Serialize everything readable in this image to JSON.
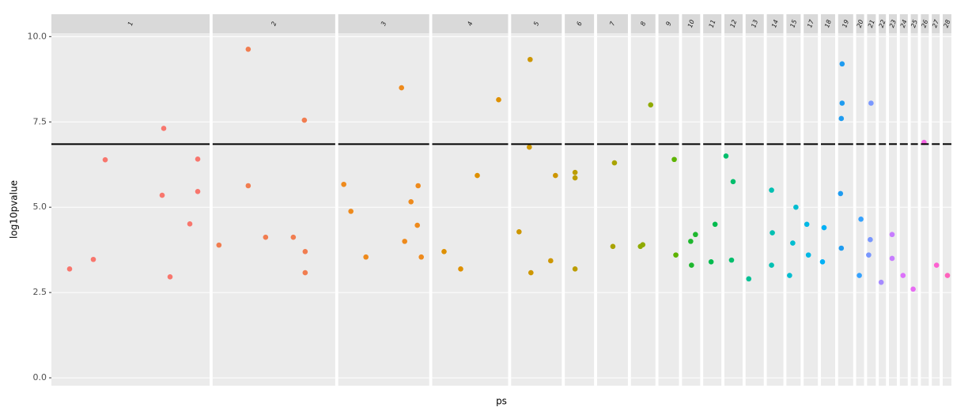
{
  "chart_data": {
    "type": "scatter",
    "y_label": "log10pvalue",
    "x_label": "ps",
    "ylim": [
      -0.23,
      10.1
    ],
    "yticks": [
      {
        "value": 0,
        "label": "0.0"
      },
      {
        "value": 2.5,
        "label": "2.5"
      },
      {
        "value": 5,
        "label": "5.0"
      },
      {
        "value": 7.5,
        "label": "7.5"
      },
      {
        "value": 10,
        "label": "10.0"
      }
    ],
    "threshold": 6.85,
    "grid": true,
    "series": [
      {
        "name": "1",
        "color": "#F8766D",
        "xlim": [
          0,
          200
        ],
        "x": [
          68,
          142,
          140,
          185,
          185,
          175,
          53,
          23,
          150
        ],
        "values": [
          6.39,
          7.31,
          5.35,
          6.41,
          5.46,
          4.51,
          3.47,
          3.19,
          2.96
        ]
      },
      {
        "name": "2",
        "color": "#F17D50",
        "xlim": [
          0,
          155
        ],
        "x": [
          45,
          116,
          45,
          67,
          102,
          117,
          117,
          8
        ],
        "values": [
          9.63,
          7.55,
          5.63,
          4.12,
          4.12,
          3.7,
          3.08,
          3.89
        ]
      },
      {
        "name": "3",
        "color": "#EE8A1C",
        "xlim": [
          0,
          115
        ],
        "x": [
          80,
          7,
          16,
          101,
          92,
          100,
          84,
          105,
          35
        ],
        "values": [
          8.5,
          5.67,
          4.88,
          5.63,
          5.16,
          4.47,
          4.0,
          3.54,
          3.54
        ]
      },
      {
        "name": "4",
        "color": "#DE9000",
        "xlim": [
          0,
          96
        ],
        "x": [
          84,
          57,
          15,
          36
        ],
        "values": [
          8.15,
          5.93,
          3.7,
          3.19
        ]
      },
      {
        "name": "5",
        "color": "#CD9600",
        "xlim": [
          0,
          64
        ],
        "x": [
          24,
          23,
          56,
          10,
          50,
          25
        ],
        "values": [
          9.33,
          6.76,
          5.93,
          4.28,
          3.43,
          3.08
        ]
      },
      {
        "name": "6",
        "color": "#BC9D00",
        "xlim": [
          0,
          37
        ],
        "x": [
          13,
          13,
          13
        ],
        "values": [
          6.02,
          5.86,
          3.19
        ]
      },
      {
        "name": "7",
        "color": "#A9A300",
        "xlim": [
          0,
          39
        ],
        "x": [
          22,
          20
        ],
        "values": [
          6.3,
          3.85
        ]
      },
      {
        "name": "8",
        "color": "#8FAA00",
        "xlim": [
          0,
          31
        ],
        "x": [
          25,
          15,
          12
        ],
        "values": [
          8.0,
          3.9,
          3.85
        ]
      },
      {
        "name": "9",
        "color": "#5DB300",
        "xlim": [
          0,
          26
        ],
        "x": [
          20,
          22
        ],
        "values": [
          6.4,
          3.6
        ]
      },
      {
        "name": "10",
        "color": "#1EB72E",
        "xlim": [
          0,
          23
        ],
        "x": [
          17,
          11,
          12
        ],
        "values": [
          4.2,
          4.0,
          3.3
        ]
      },
      {
        "name": "11",
        "color": "#00BB4E",
        "xlim": [
          0,
          23
        ],
        "x": [
          15,
          10
        ],
        "values": [
          4.5,
          3.4
        ]
      },
      {
        "name": "12",
        "color": "#00BE6C",
        "xlim": [
          0,
          23
        ],
        "x": [
          2,
          11,
          9
        ],
        "values": [
          6.5,
          5.75,
          3.45
        ]
      },
      {
        "name": "13",
        "color": "#00C094",
        "xlim": [
          0,
          23
        ],
        "x": [
          4
        ],
        "values": [
          2.9
        ]
      },
      {
        "name": "14",
        "color": "#00C0B2",
        "xlim": [
          0,
          21
        ],
        "x": [
          6,
          7,
          6
        ],
        "values": [
          5.5,
          4.25,
          3.3
        ]
      },
      {
        "name": "15",
        "color": "#00BDD0",
        "xlim": [
          0,
          18
        ],
        "x": [
          12,
          8,
          4
        ],
        "values": [
          5.0,
          3.95,
          3.0
        ]
      },
      {
        "name": "17",
        "color": "#00B8E5",
        "xlim": [
          0,
          18
        ],
        "x": [
          4,
          6
        ],
        "values": [
          4.5,
          3.6
        ]
      },
      {
        "name": "18",
        "color": "#00B0F6",
        "xlim": [
          0,
          18
        ],
        "x": [
          4,
          2
        ],
        "values": [
          4.4,
          3.4
        ]
      },
      {
        "name": "19",
        "color": "#1E9BF0",
        "xlim": [
          0,
          19
        ],
        "x": [
          5,
          5,
          4,
          3,
          4
        ],
        "values": [
          9.2,
          8.05,
          7.6,
          5.4,
          3.8
        ]
      },
      {
        "name": "20",
        "color": "#35A2FF",
        "xlim": [
          0,
          10
        ],
        "x": [
          6,
          4
        ],
        "values": [
          4.65,
          3.0
        ]
      },
      {
        "name": "21",
        "color": "#7997FF",
        "xlim": [
          0,
          11
        ],
        "x": [
          5,
          4,
          2
        ],
        "values": [
          8.05,
          4.05,
          3.6
        ]
      },
      {
        "name": "22",
        "color": "#A58AFF",
        "xlim": [
          0,
          9
        ],
        "x": [
          3
        ],
        "values": [
          2.8
        ]
      },
      {
        "name": "23",
        "color": "#C77CFF",
        "xlim": [
          0,
          10
        ],
        "x": [
          4,
          4
        ],
        "values": [
          4.2,
          3.5
        ]
      },
      {
        "name": "24",
        "color": "#DC71FA",
        "xlim": [
          0,
          10
        ],
        "x": [
          4
        ],
        "values": [
          3.0
        ]
      },
      {
        "name": "25",
        "color": "#E76BF3",
        "xlim": [
          0,
          9
        ],
        "x": [
          3
        ],
        "values": [
          2.6
        ]
      },
      {
        "name": "26",
        "color": "#F564E3",
        "xlim": [
          0,
          10
        ],
        "x": [
          4
        ],
        "values": [
          6.9
        ]
      },
      {
        "name": "27",
        "color": "#FD61D1",
        "xlim": [
          0,
          10
        ],
        "x": [
          6
        ],
        "values": [
          3.3
        ]
      },
      {
        "name": "28",
        "color": "#FF62BC",
        "xlim": [
          0,
          11
        ],
        "x": [
          6
        ],
        "values": [
          3.0
        ]
      }
    ]
  }
}
